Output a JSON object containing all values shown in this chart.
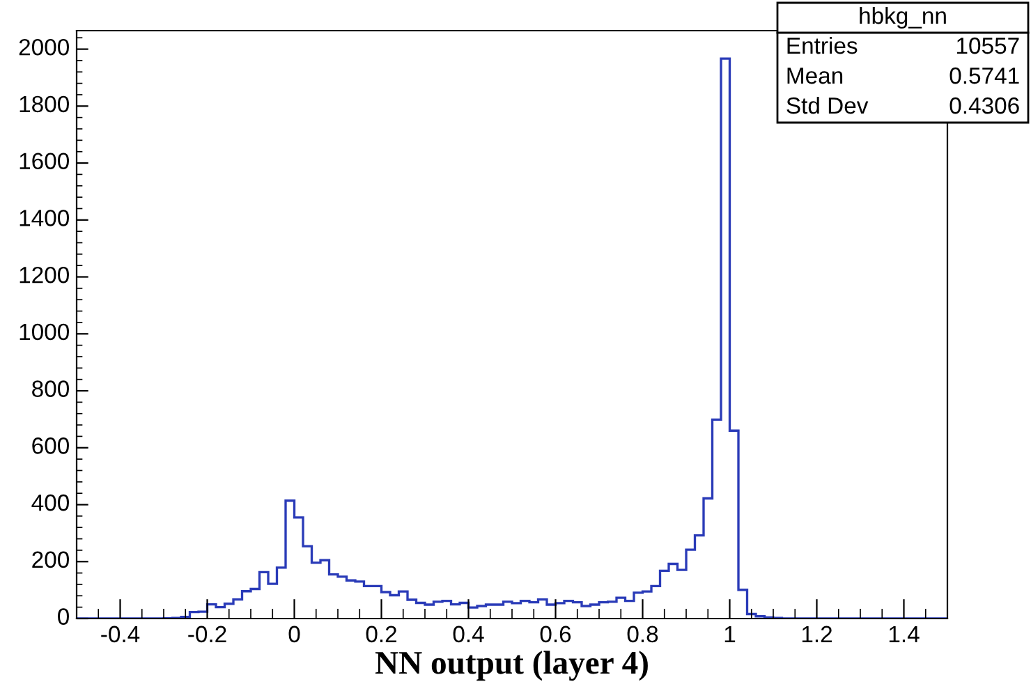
{
  "chart_data": {
    "type": "histogram",
    "xlabel": "NN output (layer 4)",
    "bins": [
      -0.5,
      -0.48,
      -0.46,
      -0.44,
      -0.42,
      -0.4,
      -0.38,
      -0.36,
      -0.34,
      -0.32,
      -0.3,
      -0.28,
      -0.26,
      -0.24,
      -0.22,
      -0.2,
      -0.18,
      -0.16,
      -0.14,
      -0.12,
      -0.1,
      -0.08,
      -0.06,
      -0.04,
      -0.02,
      0,
      0.02,
      0.04,
      0.06,
      0.08,
      0.1,
      0.12,
      0.14,
      0.16,
      0.18,
      0.2,
      0.22,
      0.24,
      0.26,
      0.28,
      0.3,
      0.32,
      0.34,
      0.36,
      0.38,
      0.4,
      0.42,
      0.44,
      0.46,
      0.48,
      0.5,
      0.52,
      0.54,
      0.56,
      0.58,
      0.6,
      0.62,
      0.64,
      0.66,
      0.68,
      0.7,
      0.72,
      0.74,
      0.76,
      0.78,
      0.8,
      0.82,
      0.84,
      0.86,
      0.88,
      0.9,
      0.92,
      0.94,
      0.96,
      0.98,
      1,
      1.02,
      1.04,
      1.06,
      1.08,
      1.1,
      1.12,
      1.14,
      1.16,
      1.18,
      1.2,
      1.22,
      1.24,
      1.26,
      1.28,
      1.3,
      1.32,
      1.34,
      1.36,
      1.38,
      1.4,
      1.42,
      1.44,
      1.46,
      1.48,
      1.5
    ],
    "values": [
      0,
      0,
      0,
      0,
      0,
      0,
      0,
      0,
      0,
      0,
      1,
      2,
      6,
      23,
      24,
      50,
      40,
      52,
      67,
      96,
      104,
      163,
      122,
      179,
      414,
      355,
      254,
      196,
      205,
      155,
      147,
      134,
      130,
      114,
      114,
      93,
      82,
      95,
      66,
      55,
      49,
      59,
      62,
      50,
      55,
      39,
      44,
      49,
      49,
      59,
      54,
      62,
      57,
      67,
      49,
      54,
      62,
      57,
      44,
      49,
      57,
      59,
      73,
      62,
      91,
      95,
      114,
      168,
      192,
      171,
      242,
      292,
      422,
      699,
      1967,
      660,
      101,
      16,
      8,
      4,
      2,
      0,
      0,
      0,
      0,
      0,
      0,
      0,
      0,
      0,
      0,
      0,
      0,
      0,
      0,
      0,
      0,
      0,
      0,
      0
    ],
    "color": "#2a3bb8",
    "xlim": [
      -0.5,
      1.5
    ],
    "xticks": [
      -0.4,
      -0.2,
      0,
      0.2,
      0.4,
      0.6,
      0.8,
      1,
      1.2,
      1.4
    ],
    "ylim": [
      0,
      2065
    ],
    "yticks": [
      0,
      200,
      400,
      600,
      800,
      1000,
      1200,
      1400,
      1600,
      1800,
      2000
    ],
    "grid": false,
    "legend": false,
    "annotations": [
      "hbkg_nn",
      "Entries",
      "10557",
      "Mean",
      "0.5741",
      "Std Dev",
      "0.4306"
    ]
  }
}
